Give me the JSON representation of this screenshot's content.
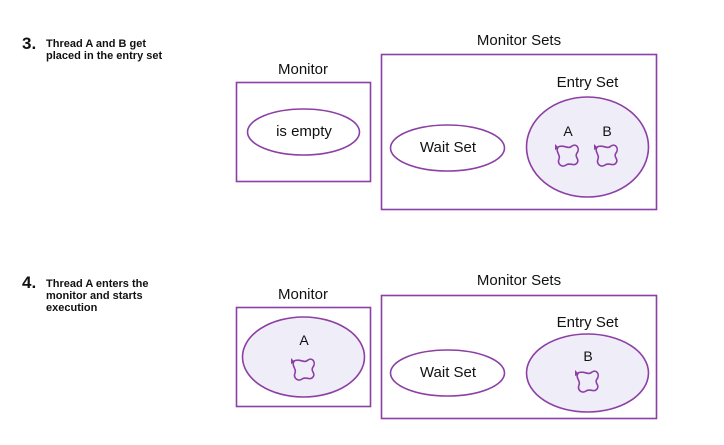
{
  "steps": [
    {
      "number": "3.",
      "text": "Thread A and B get placed in the entry set",
      "monitor_label": "Monitor",
      "monitor_sets_label": "Monitor Sets",
      "monitor_content": "is empty",
      "wait_set_label": "Wait Set",
      "entry_set_label": "Entry Set",
      "monitor_threads": [],
      "entry_threads": [
        "A",
        "B"
      ]
    },
    {
      "number": "4.",
      "text": "Thread A enters the monitor and starts execution",
      "monitor_label": "Monitor",
      "monitor_sets_label": "Monitor Sets",
      "monitor_content": "",
      "wait_set_label": "Wait Set",
      "entry_set_label": "Entry Set",
      "monitor_threads": [
        "A"
      ],
      "entry_threads": [
        "B"
      ]
    }
  ],
  "colors": {
    "stroke": "#8c3fa5",
    "fill": "#efedf7"
  }
}
